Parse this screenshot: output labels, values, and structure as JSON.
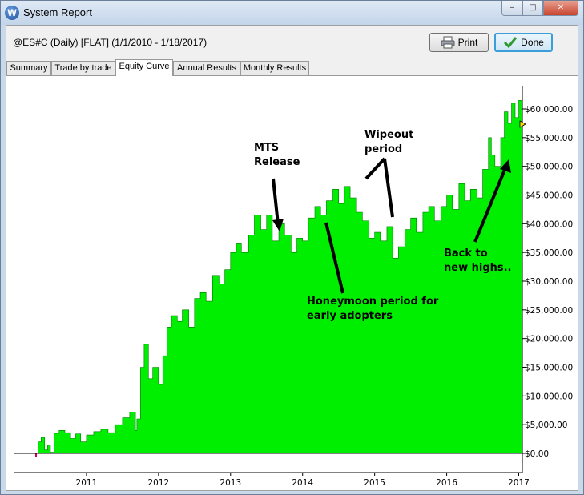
{
  "window": {
    "title": "System Report",
    "icon": "W"
  },
  "caption": {
    "minimize": "–",
    "maximize": "□",
    "close": "✕"
  },
  "header": {
    "symbol": "@ES#C (Daily) [FLAT]  (1/1/2010 - 1/18/2017)"
  },
  "toolbar": {
    "print_label": "Print",
    "done_label": "Done"
  },
  "tabs": [
    {
      "label": "Summary"
    },
    {
      "label": "Trade by trade"
    },
    {
      "label": "Equity Curve",
      "active": true
    },
    {
      "label": "Annual Results"
    },
    {
      "label": "Monthly Results"
    }
  ],
  "colors": {
    "equity_fill": "#00ee00",
    "drawdown": "#cc0055",
    "arrow": "#000000"
  },
  "chart_data": {
    "type": "area",
    "y_ticks": [
      "$60,000.00",
      "$55,000.00",
      "$50,000.00",
      "$45,000.00",
      "$40,000.00",
      "$35,000.00",
      "$30,000.00",
      "$25,000.00",
      "$20,000.00",
      "$15,000.00",
      "$10,000.00",
      "$5,000.00",
      "$0.00"
    ],
    "x_ticks": [
      "2011",
      "2012",
      "2013",
      "2014",
      "2015",
      "2016",
      "2017"
    ],
    "ylim": [
      0,
      60000
    ],
    "xlim": [
      2010.0,
      2017.05
    ],
    "series": [
      {
        "values": [
          [
            2010.0,
            0
          ],
          [
            2010.25,
            0
          ],
          [
            2010.3,
            -600
          ],
          [
            2010.33,
            2000
          ],
          [
            2010.37,
            2800
          ],
          [
            2010.42,
            600
          ],
          [
            2010.46,
            1500
          ],
          [
            2010.5,
            200
          ],
          [
            2010.55,
            3500
          ],
          [
            2010.62,
            4000
          ],
          [
            2010.7,
            3600
          ],
          [
            2010.78,
            2600
          ],
          [
            2010.85,
            3400
          ],
          [
            2010.92,
            2000
          ],
          [
            2011.0,
            3200
          ],
          [
            2011.1,
            3800
          ],
          [
            2011.2,
            4200
          ],
          [
            2011.3,
            3600
          ],
          [
            2011.4,
            5000
          ],
          [
            2011.5,
            6200
          ],
          [
            2011.6,
            7200
          ],
          [
            2011.68,
            4000
          ],
          [
            2011.7,
            6000
          ],
          [
            2011.75,
            15000
          ],
          [
            2011.8,
            19000
          ],
          [
            2011.86,
            13000
          ],
          [
            2011.92,
            15000
          ],
          [
            2012.0,
            12000
          ],
          [
            2012.06,
            17000
          ],
          [
            2012.12,
            22000
          ],
          [
            2012.18,
            24000
          ],
          [
            2012.26,
            23000
          ],
          [
            2012.33,
            25000
          ],
          [
            2012.42,
            22000
          ],
          [
            2012.5,
            27000
          ],
          [
            2012.58,
            28000
          ],
          [
            2012.66,
            26500
          ],
          [
            2012.75,
            31000
          ],
          [
            2012.84,
            29500
          ],
          [
            2012.92,
            32000
          ],
          [
            2013.0,
            35000
          ],
          [
            2013.08,
            36500
          ],
          [
            2013.15,
            35000
          ],
          [
            2013.25,
            38000
          ],
          [
            2013.33,
            41500
          ],
          [
            2013.42,
            39000
          ],
          [
            2013.5,
            41500
          ],
          [
            2013.58,
            37000
          ],
          [
            2013.67,
            40000
          ],
          [
            2013.75,
            38000
          ],
          [
            2013.84,
            35000
          ],
          [
            2013.92,
            37500
          ],
          [
            2014.0,
            37000
          ],
          [
            2014.08,
            41000
          ],
          [
            2014.17,
            43000
          ],
          [
            2014.25,
            41500
          ],
          [
            2014.33,
            44000
          ],
          [
            2014.42,
            46000
          ],
          [
            2014.5,
            43500
          ],
          [
            2014.58,
            46500
          ],
          [
            2014.66,
            44500
          ],
          [
            2014.75,
            42000
          ],
          [
            2014.83,
            40500
          ],
          [
            2014.92,
            37500
          ],
          [
            2015.0,
            38500
          ],
          [
            2015.08,
            37000
          ],
          [
            2015.17,
            39500
          ],
          [
            2015.25,
            34000
          ],
          [
            2015.33,
            36000
          ],
          [
            2015.42,
            39000
          ],
          [
            2015.5,
            41000
          ],
          [
            2015.58,
            38500
          ],
          [
            2015.67,
            42000
          ],
          [
            2015.75,
            43000
          ],
          [
            2015.83,
            40500
          ],
          [
            2015.92,
            43000
          ],
          [
            2016.0,
            45000
          ],
          [
            2016.08,
            42500
          ],
          [
            2016.17,
            47000
          ],
          [
            2016.25,
            44000
          ],
          [
            2016.33,
            46000
          ],
          [
            2016.42,
            44500
          ],
          [
            2016.5,
            49500
          ],
          [
            2016.58,
            55000
          ],
          [
            2016.62,
            52000
          ],
          [
            2016.67,
            50000
          ],
          [
            2016.75,
            55000
          ],
          [
            2016.8,
            59500
          ],
          [
            2016.85,
            57500
          ],
          [
            2016.9,
            61000
          ],
          [
            2016.95,
            58500
          ],
          [
            2017.0,
            61500
          ],
          [
            2017.05,
            61000
          ]
        ]
      }
    ],
    "annotations": [
      {
        "lines": [
          "MTS",
          "Release"
        ]
      },
      {
        "lines": [
          "Wipeout",
          "period"
        ]
      },
      {
        "lines": [
          "Honeymoon period for",
          "early adopters"
        ]
      },
      {
        "lines": [
          "Back to",
          "new highs.."
        ]
      }
    ]
  }
}
